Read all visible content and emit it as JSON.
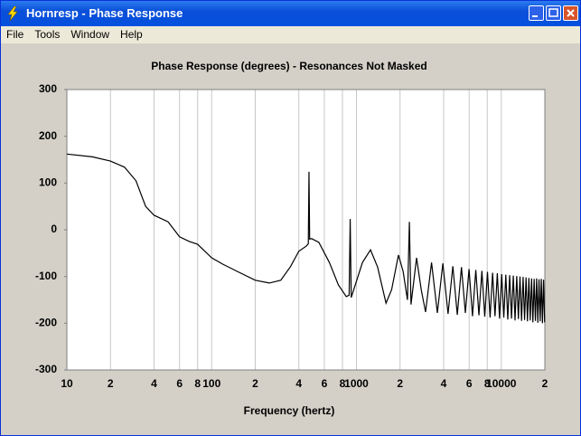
{
  "window": {
    "title": "Hornresp - Phase Response"
  },
  "menu": [
    "File",
    "Tools",
    "Window",
    "Help"
  ],
  "chart_data": {
    "type": "line",
    "title": "Phase Response (degrees) - Resonances Not Masked",
    "x_label": "Frequency (hertz)",
    "x_scale": "log",
    "color": "#000000",
    "grid": true,
    "xlim": [
      10,
      20000
    ],
    "ylim": [
      -300,
      300
    ],
    "xticks": [
      10,
      {
        "value": 20,
        "label": "2"
      },
      {
        "value": 40,
        "label": "4"
      },
      {
        "value": 60,
        "label": "6"
      },
      {
        "value": 80,
        "label": "8"
      },
      100,
      {
        "value": 200,
        "label": "2"
      },
      {
        "value": 400,
        "label": "4"
      },
      {
        "value": 600,
        "label": "6"
      },
      {
        "value": 800,
        "label": "8"
      },
      1000,
      {
        "value": 2000,
        "label": "2"
      },
      {
        "value": 4000,
        "label": "4"
      },
      {
        "value": 6000,
        "label": "6"
      },
      {
        "value": 8000,
        "label": "8"
      },
      10000,
      {
        "value": 20000,
        "label": "2"
      }
    ],
    "yticks": [
      -300,
      -200,
      -100,
      0,
      100,
      200,
      300
    ],
    "x": [
      10,
      15,
      20,
      25,
      30,
      35,
      40,
      50,
      60,
      70,
      80,
      100,
      120,
      150,
      200,
      250,
      300,
      350,
      400,
      450,
      465,
      470,
      475,
      490,
      550,
      650,
      750,
      850,
      890,
      905,
      920,
      1000,
      1100,
      1250,
      1400,
      1600,
      1750,
      1950,
      2100,
      2250,
      2320,
      2380,
      2600,
      2800,
      3000,
      3300,
      3620,
      3950,
      4290,
      4630,
      4970,
      5310,
      5650,
      5990,
      6330,
      6670,
      7010,
      7350,
      7690,
      8030,
      8370,
      8710,
      9050,
      9390,
      9730,
      10070,
      10410,
      10750,
      11090,
      11430,
      11770,
      12110,
      12450,
      12790,
      13130,
      13470,
      13810,
      14150,
      14490,
      14830,
      15170,
      15510,
      15850,
      16190,
      16530,
      16870,
      17210,
      17550,
      17890,
      18230,
      18570,
      18910,
      19250,
      19590,
      19930
    ],
    "values": [
      162,
      156,
      147,
      134,
      105,
      50,
      31,
      17,
      -15,
      -25,
      -31,
      -60,
      -74,
      -89,
      -108,
      -114,
      -108,
      -79,
      -46,
      -35,
      -30,
      124,
      -20,
      -19,
      -27,
      -70,
      -118,
      -143,
      -140,
      23,
      -145,
      -110,
      -70,
      -43,
      -80,
      -157,
      -128,
      -54,
      -89,
      -150,
      17,
      -160,
      -60,
      -128,
      -176,
      -70,
      -178,
      -72,
      -180,
      -78,
      -182,
      -80,
      -178,
      -84,
      -185,
      -86,
      -183,
      -88,
      -186,
      -90,
      -188,
      -92,
      -185,
      -93,
      -190,
      -95,
      -188,
      -96,
      -192,
      -97,
      -190,
      -98,
      -194,
      -99,
      -191,
      -100,
      -195,
      -101,
      -193,
      -102,
      -196,
      -103,
      -194,
      -104,
      -198,
      -105,
      -195,
      -104,
      -199,
      -106,
      -196,
      -105,
      -200,
      -107,
      -198
    ]
  }
}
